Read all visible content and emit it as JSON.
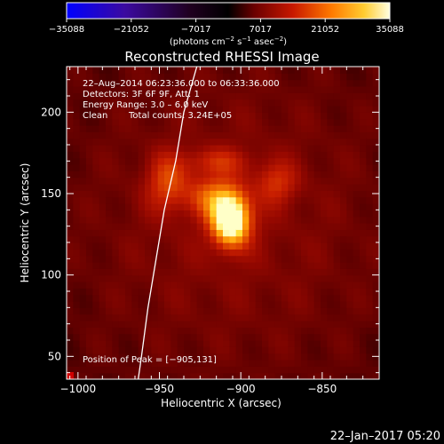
{
  "chart_data": {
    "type": "heatmap",
    "title": "Reconstructed RHESSI Image",
    "xlabel": "Heliocentric X (arcsec)",
    "ylabel": "Heliocentric Y (arcsec)",
    "xlim": [
      -1007,
      -815
    ],
    "ylim": [
      36,
      228
    ],
    "x_ticks": [
      -1000,
      -950,
      -900,
      -850
    ],
    "x_tick_labels": [
      "−1000",
      "−950",
      "−900",
      "−850"
    ],
    "y_ticks": [
      50,
      100,
      150,
      200
    ],
    "y_tick_labels": [
      "50",
      "100",
      "150",
      "200"
    ],
    "colorbar": {
      "min": -35088,
      "max": 35088,
      "ticks": [
        -35088,
        -21052,
        -7017,
        7017,
        21052,
        35088
      ],
      "tick_labels": [
        "−35088",
        "−21052",
        "−7017",
        "7017",
        "21052",
        "35088"
      ],
      "units_label": "(photons cm",
      "units_sup1": "−2",
      "units_mid": " s",
      "units_sup2": "−1",
      "units_end": " asec",
      "units_sup3": "−2",
      "units_close": ")"
    },
    "annotations": {
      "time_range": "22–Aug–2014 06:23:36.000 to 06:33:36.000",
      "detectors": "Detectors: 3F 6F 9F, Att: 1",
      "energy": "Energy Range: 3.0 – 6.0 keV",
      "method": "Clean",
      "total_counts": "Total counts: 3.24E+05",
      "peak": "Position of Peak = [−905,131]"
    },
    "peak_position": [
      -905,
      131
    ],
    "sources": [
      {
        "x": -906,
        "y": 134,
        "sx": 8,
        "sy": 11,
        "amp": 1.0
      },
      {
        "x": -917,
        "y": 148,
        "sx": 11,
        "sy": 9,
        "amp": 0.35
      },
      {
        "x": -945,
        "y": 157,
        "sx": 9,
        "sy": 12,
        "amp": 0.32
      },
      {
        "x": -915,
        "y": 170,
        "sx": 14,
        "sy": 6,
        "amp": 0.22
      },
      {
        "x": -878,
        "y": 157,
        "sx": 9,
        "sy": 9,
        "amp": 0.25
      }
    ],
    "background_level": 0.12,
    "limb_arc": [
      [
        -927,
        228
      ],
      [
        -935,
        200
      ],
      [
        -940,
        170
      ],
      [
        -947,
        140
      ],
      [
        -952,
        110
      ],
      [
        -957,
        80
      ],
      [
        -961,
        50
      ],
      [
        -963,
        36
      ]
    ]
  },
  "footer": {
    "date": "22–Jan–2017 05:20"
  },
  "colors": {
    "background": "#000000",
    "text": "#ffffff",
    "limb": "#ffffff"
  }
}
